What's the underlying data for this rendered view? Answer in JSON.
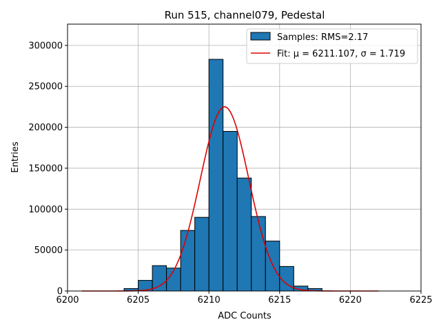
{
  "chart_data": {
    "type": "bar",
    "title": "Run 515, channel079, Pedestal",
    "xlabel": "ADC Counts",
    "ylabel": "Entries",
    "xlim": [
      6200,
      6225
    ],
    "ylim": [
      0,
      326000
    ],
    "grid": true,
    "legend_position": "top-right",
    "x_ticks": [
      6200,
      6205,
      6210,
      6215,
      6220,
      6225
    ],
    "y_ticks": [
      0,
      50000,
      100000,
      150000,
      200000,
      250000,
      300000
    ],
    "bins": [
      {
        "left": 6204,
        "right": 6205,
        "value": 3000
      },
      {
        "left": 6205,
        "right": 6206,
        "value": 13000
      },
      {
        "left": 6206,
        "right": 6207,
        "value": 31000
      },
      {
        "left": 6207,
        "right": 6208,
        "value": 28000
      },
      {
        "left": 6208,
        "right": 6209,
        "value": 74000
      },
      {
        "left": 6209,
        "right": 6210,
        "value": 90000
      },
      {
        "left": 6210,
        "right": 6211,
        "value": 283000
      },
      {
        "left": 6211,
        "right": 6212,
        "value": 195000
      },
      {
        "left": 6212,
        "right": 6213,
        "value": 138000
      },
      {
        "left": 6213,
        "right": 6214,
        "value": 91000
      },
      {
        "left": 6214,
        "right": 6215,
        "value": 61000
      },
      {
        "left": 6215,
        "right": 6216,
        "value": 30000
      },
      {
        "left": 6216,
        "right": 6217,
        "value": 6000
      },
      {
        "left": 6217,
        "right": 6218,
        "value": 3000
      }
    ],
    "series": [
      {
        "name": "Samples: RMS=2.17",
        "kind": "histogram",
        "color": "#1f77b4"
      },
      {
        "name": "Fit: μ = 6211.107, σ = 1.719",
        "kind": "gaussian",
        "color": "#dd0000",
        "mu": 6211.107,
        "sigma": 1.719,
        "amplitude": 225000,
        "x_range": [
          6201,
          6222
        ]
      }
    ]
  }
}
